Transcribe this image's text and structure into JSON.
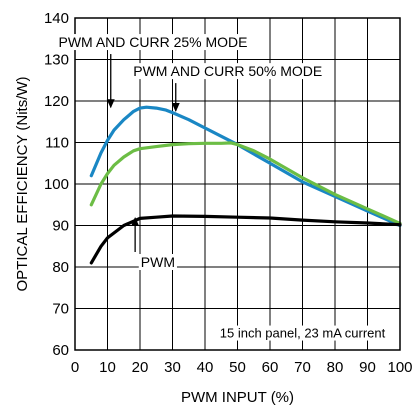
{
  "chart_data": {
    "type": "line",
    "xlabel": "PWM INPUT (%)",
    "ylabel": "OPTICAL EFFICIENCY (Nits/W)",
    "xlim": [
      0,
      100
    ],
    "ylim": [
      60,
      140
    ],
    "xticks": [
      0,
      10,
      20,
      30,
      40,
      50,
      60,
      70,
      80,
      90,
      100
    ],
    "yticks": [
      60,
      70,
      80,
      90,
      100,
      110,
      120,
      130,
      140
    ],
    "grid": true,
    "series": [
      {
        "name": "PWM AND CURR 25% MODE",
        "color": "#1a87c4",
        "x": [
          5,
          8,
          10,
          12,
          15,
          18,
          20,
          22,
          25,
          28,
          30,
          35,
          40,
          45,
          50,
          60,
          70,
          80,
          90,
          100
        ],
        "y": [
          102,
          107.5,
          110.5,
          113,
          115.5,
          117.5,
          118.3,
          118.5,
          118.3,
          117.8,
          117.2,
          115.5,
          113.5,
          111.5,
          109.5,
          105,
          100.5,
          97,
          93.5,
          90
        ]
      },
      {
        "name": "PWM AND CURR 50% MODE",
        "color": "#6cbd45",
        "x": [
          5,
          8,
          10,
          12,
          15,
          18,
          20,
          25,
          30,
          35,
          40,
          45,
          48,
          50,
          55,
          60,
          70,
          80,
          90,
          100
        ],
        "y": [
          95,
          100,
          102.5,
          104.5,
          106.5,
          108,
          108.5,
          109,
          109.5,
          109.7,
          109.8,
          109.8,
          109.9,
          109.5,
          108,
          106,
          101.5,
          97.5,
          94,
          90.5
        ]
      },
      {
        "name": "PWM",
        "color": "#000000",
        "x": [
          5,
          8,
          10,
          15,
          20,
          25,
          30,
          40,
          50,
          60,
          70,
          80,
          90,
          100
        ],
        "y": [
          81,
          85,
          87,
          90,
          91.7,
          92,
          92.3,
          92.2,
          92,
          91.8,
          91.3,
          90.9,
          90.6,
          90.2
        ]
      }
    ],
    "annotations": [
      {
        "text": "PWM AND CURR 25% MODE",
        "x": 24,
        "y": 133,
        "arrow_to": [
          11,
          118.5
        ]
      },
      {
        "text": "PWM AND CURR 50% MODE",
        "x": 47,
        "y": 126,
        "arrow_to": [
          31,
          117.6
        ]
      },
      {
        "text": "PWM",
        "x": 25.5,
        "y": 80,
        "arrow_to": [
          18.5,
          91.8
        ]
      },
      {
        "text": "15 inch panel, 23 mA current",
        "x": 70,
        "y": 63
      }
    ]
  }
}
